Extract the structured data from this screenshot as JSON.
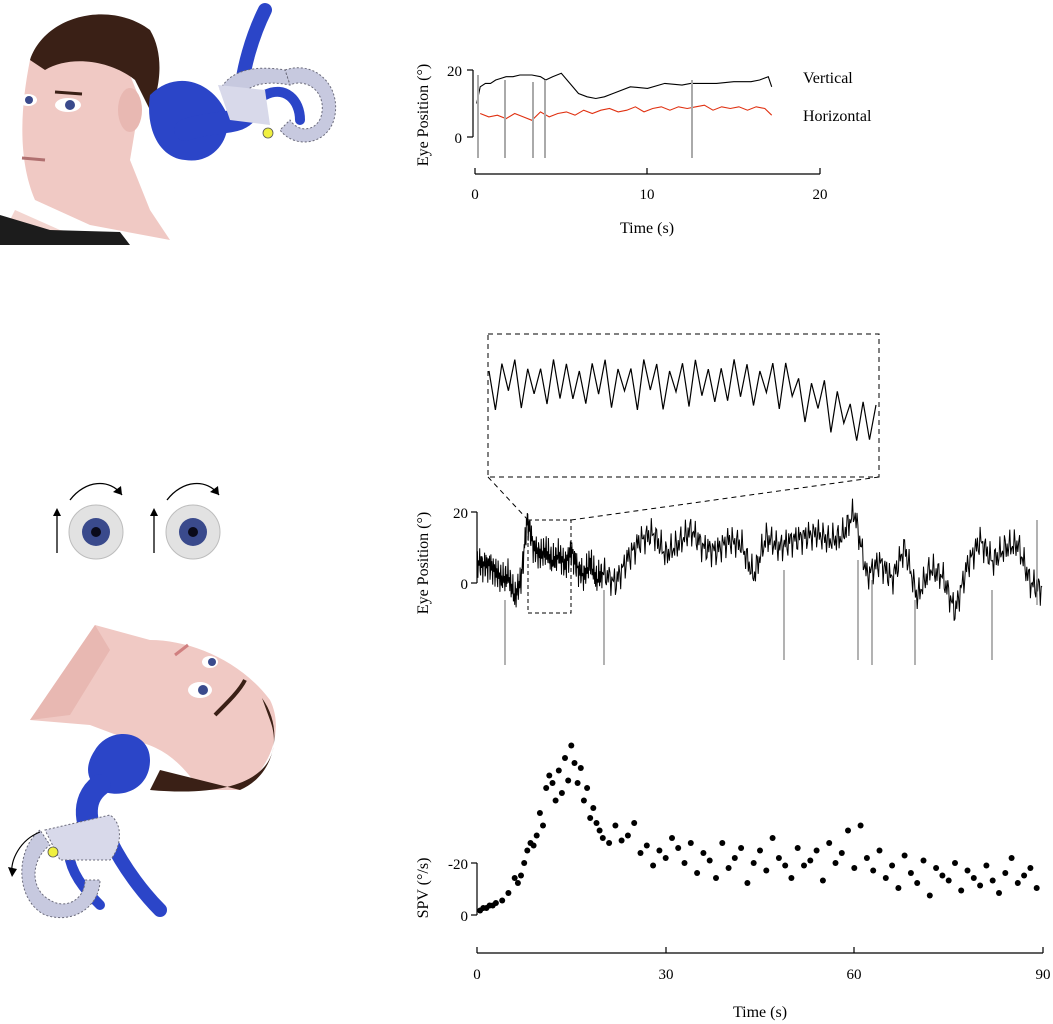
{
  "chart_data": [
    {
      "type": "line",
      "xlabel": "Time (s)",
      "ylabel": "Eye Position (°)",
      "xlim": [
        0,
        20
      ],
      "ylim": [
        -5,
        21
      ],
      "x_ticks": [
        "0",
        "10",
        "20"
      ],
      "y_ticks": [
        "0",
        "20"
      ],
      "series": [
        {
          "name": "Vertical",
          "color": "#000000",
          "x": [
            0.1,
            0.3,
            0.6,
            0.9,
            1.2,
            1.5,
            1.8,
            2.2,
            2.6,
            3.0,
            3.3,
            3.8,
            4.1,
            4.5,
            5.0,
            5.5,
            6.0,
            6.5,
            7.0,
            7.5,
            8.0,
            9.0,
            10.0,
            11.0,
            12.0,
            12.5,
            13.0,
            14.0,
            15.0,
            16.0,
            16.5,
            17.0,
            17.2
          ],
          "values": [
            10,
            15,
            16,
            16,
            17,
            17.5,
            18,
            18,
            18.5,
            18.5,
            18.5,
            18,
            17,
            18,
            19,
            16,
            13,
            12,
            11.5,
            12,
            13,
            15,
            14.5,
            16,
            15.5,
            16,
            16,
            16,
            16.5,
            16.5,
            17,
            18,
            15
          ]
        },
        {
          "name": "Horizontal",
          "color": "#e03010",
          "x": [
            0.3,
            0.8,
            1.3,
            1.8,
            2.3,
            2.8,
            3.3,
            3.8,
            4.3,
            4.8,
            5.3,
            5.8,
            6.3,
            6.8,
            7.3,
            7.8,
            8.3,
            8.8,
            9.3,
            9.8,
            10.3,
            10.8,
            11.3,
            11.8,
            12.3,
            12.8,
            13.3,
            13.8,
            14.3,
            14.8,
            15.3,
            15.8,
            16.3,
            16.8,
            17.2
          ],
          "values": [
            7,
            6,
            6.5,
            5.5,
            7,
            6,
            5,
            7.5,
            6,
            7,
            7.5,
            6.5,
            8,
            7,
            8,
            8.5,
            7.5,
            8,
            9,
            7.5,
            8.5,
            9,
            8,
            9,
            8.5,
            9,
            9.5,
            8,
            9,
            8.5,
            9,
            8,
            9,
            8.5,
            6.5
          ]
        }
      ]
    },
    {
      "type": "line",
      "ylabel": "Eye Position (°)",
      "xlim": [
        0,
        90
      ],
      "ylim": [
        -12,
        22
      ],
      "y_ticks": [
        "0",
        "20"
      ],
      "series": [
        {
          "color": "#000000",
          "x": [
            0,
            1,
            2,
            3,
            4,
            5,
            6,
            7,
            8,
            9,
            10,
            11,
            12,
            13,
            14,
            15,
            16,
            17,
            18,
            19,
            20,
            22,
            24,
            26,
            28,
            30,
            32,
            34,
            36,
            38,
            40,
            42,
            44,
            46,
            48,
            50,
            52,
            54,
            56,
            58,
            60,
            62,
            64,
            66,
            68,
            70,
            72,
            74,
            76,
            78,
            80,
            82,
            84,
            86,
            88,
            90
          ],
          "values": [
            6,
            5,
            5,
            3,
            1,
            2,
            -4,
            1,
            18,
            10,
            8,
            9,
            6,
            8,
            5,
            9,
            4,
            2,
            6,
            1,
            3,
            0,
            7,
            12,
            14,
            8,
            11,
            15,
            10,
            9,
            12,
            11,
            2,
            13,
            10,
            12,
            13,
            14,
            12,
            13,
            20,
            2,
            6,
            1,
            10,
            -4,
            4,
            2,
            -8,
            5,
            12,
            6,
            10,
            11,
            0,
            -2
          ]
        }
      ]
    },
    {
      "type": "scatter",
      "xlabel": "Time (s)",
      "ylabel": "SPV (°/s)",
      "xlim": [
        0,
        90
      ],
      "ylim": [
        2,
        -68
      ],
      "x_ticks": [
        "0",
        "30",
        "60",
        "90"
      ],
      "y_ticks": [
        "0",
        "-20"
      ],
      "points_x": [
        0.5,
        1,
        1.5,
        2,
        2.5,
        3,
        4,
        5,
        6,
        6.5,
        7,
        7.5,
        8,
        8.5,
        9,
        9.5,
        10,
        10.5,
        11,
        11.5,
        12,
        12.5,
        13,
        13.5,
        14,
        14.5,
        15,
        15.5,
        16,
        16.5,
        17,
        17.5,
        18,
        18.5,
        19,
        19.5,
        20,
        21,
        22,
        23,
        24,
        25,
        26,
        27,
        28,
        29,
        30,
        31,
        32,
        33,
        34,
        35,
        36,
        37,
        38,
        39,
        40,
        41,
        42,
        43,
        44,
        45,
        46,
        47,
        48,
        49,
        50,
        51,
        52,
        53,
        54,
        55,
        56,
        57,
        58,
        59,
        60,
        61,
        62,
        63,
        64,
        65,
        66,
        67,
        68,
        69,
        70,
        71,
        72,
        73,
        74,
        75,
        76,
        77,
        78,
        79,
        80,
        81,
        82,
        83,
        84,
        85,
        86,
        87,
        88,
        89
      ],
      "points_y": [
        -1,
        -2,
        -2,
        -3,
        -3,
        -4,
        -5,
        -8,
        -14,
        -12,
        -15,
        -20,
        -25,
        -28,
        -27,
        -31,
        -40,
        -35,
        -50,
        -55,
        -52,
        -45,
        -57,
        -48,
        -62,
        -53,
        -67,
        -60,
        -52,
        -58,
        -45,
        -50,
        -38,
        -42,
        -36,
        -33,
        -30,
        -28,
        -35,
        -29,
        -31,
        -36,
        -24,
        -27,
        -19,
        -25,
        -22,
        -30,
        -26,
        -20,
        -28,
        -16,
        -24,
        -21,
        -14,
        -28,
        -18,
        -22,
        -26,
        -12,
        -20,
        -25,
        -17,
        -30,
        -22,
        -19,
        -14,
        -26,
        -19,
        -21,
        -25,
        -13,
        -28,
        -20,
        -24,
        -33,
        -18,
        -35,
        -22,
        -17,
        -25,
        -14,
        -19,
        -10,
        -23,
        -16,
        -12,
        -21,
        -7,
        -18,
        -15,
        -13,
        -20,
        -9,
        -17,
        -14,
        -11,
        -19,
        -13,
        -8,
        -16,
        -22,
        -12,
        -15,
        -18,
        -10
      ]
    }
  ],
  "legend": {
    "vertical": "Vertical",
    "horizontal": "Horizontal"
  },
  "colors": {
    "labyrinth": "#2b45c8",
    "canal": "#c7c9df",
    "skin": "#f0c9c4",
    "hair": "#3a2016",
    "iris": "#3a4a8c",
    "cupula": "#f0f040"
  },
  "icons": [
    "head-upright-icon",
    "inner-ear-upright-icon",
    "eye-left-icon",
    "eye-right-icon",
    "torsion-arrow-icon",
    "up-arrow-icon",
    "head-inverted-icon",
    "inner-ear-inverted-icon",
    "rotation-arrow-icon"
  ]
}
